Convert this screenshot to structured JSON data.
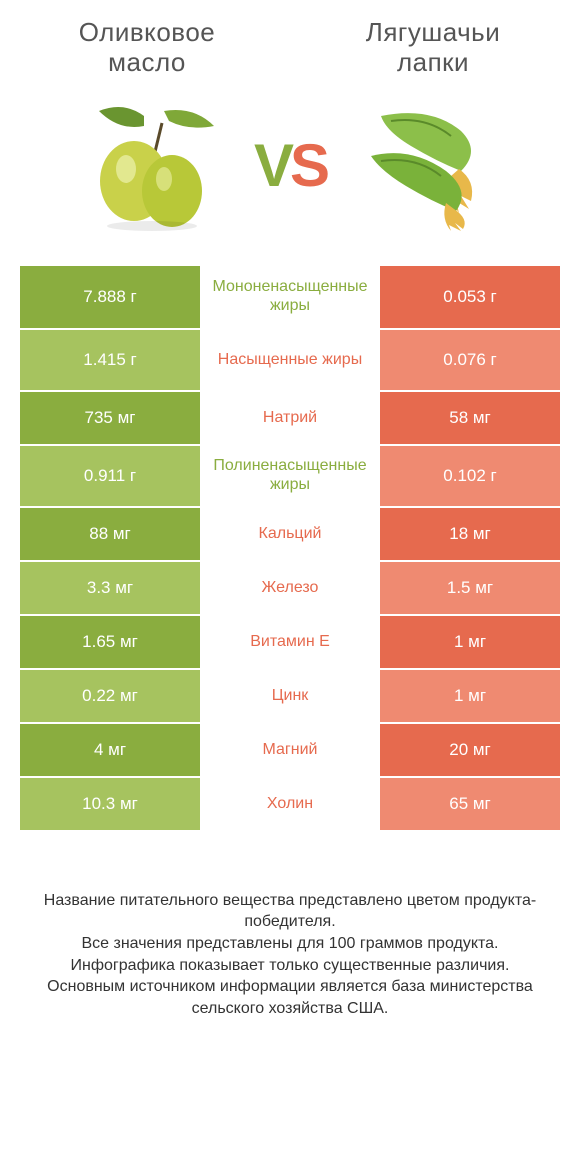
{
  "colors": {
    "left": "#8aad3f",
    "right": "#e66a4e",
    "left_light": "#a6c35f",
    "right_light": "#ef8a71",
    "text_gray": "#555555",
    "footer_text": "#333333",
    "white": "#ffffff"
  },
  "header": {
    "left_line1": "Оливковое",
    "left_line2": "масло",
    "right_line1": "Лягушачьи",
    "right_line2": "лапки"
  },
  "vs": {
    "v": "V",
    "s": "S"
  },
  "rows": [
    {
      "left": "7.888 г",
      "mid": "Мононенасыщенные жиры",
      "right": "0.053 г",
      "winner": "left",
      "tall": true
    },
    {
      "left": "1.415 г",
      "mid": "Насыщенные жиры",
      "right": "0.076 г",
      "winner": "right",
      "tall": true
    },
    {
      "left": "735 мг",
      "mid": "Натрий",
      "right": "58 мг",
      "winner": "right",
      "tall": false
    },
    {
      "left": "0.911 г",
      "mid": "Полиненасыщенные жиры",
      "right": "0.102 г",
      "winner": "left",
      "tall": true
    },
    {
      "left": "88 мг",
      "mid": "Кальций",
      "right": "18 мг",
      "winner": "right",
      "tall": false
    },
    {
      "left": "3.3 мг",
      "mid": "Железо",
      "right": "1.5 мг",
      "winner": "right",
      "tall": false
    },
    {
      "left": "1.65 мг",
      "mid": "Витамин E",
      "right": "1 мг",
      "winner": "right",
      "tall": false
    },
    {
      "left": "0.22 мг",
      "mid": "Цинк",
      "right": "1 мг",
      "winner": "right",
      "tall": false
    },
    {
      "left": "4 мг",
      "mid": "Магний",
      "right": "20 мг",
      "winner": "right",
      "tall": false
    },
    {
      "left": "10.3 мг",
      "mid": "Холин",
      "right": "65 мг",
      "winner": "right",
      "tall": false
    }
  ],
  "footer": {
    "line1": "Название питательного вещества представлено цветом продукта-победителя.",
    "line2": "Все значения представлены для 100 граммов продукта.",
    "line3": "Инфографика показывает только существенные различия.",
    "line4": "Основным источником информации является база министерства сельского хозяйства США."
  }
}
